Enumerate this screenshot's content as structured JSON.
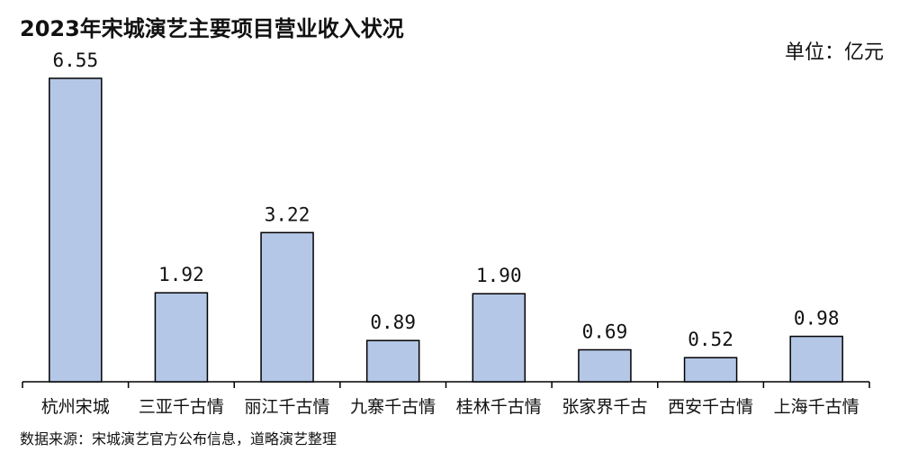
{
  "title": "2023年宋城演艺主要项目营业收入状况",
  "unit_label": "单位：亿元",
  "source": "数据来源：宋城演艺官方公布信息，道略演艺整理",
  "chart_data": {
    "type": "bar",
    "title": "2023年宋城演艺主要项目营业收入状况",
    "categories": [
      "杭州宋城",
      "三亚千古情",
      "丽江千古情",
      "九寨千古情",
      "桂林千古情",
      "张家界千古",
      "西安千古情",
      "上海千古情"
    ],
    "values": [
      6.55,
      1.92,
      3.22,
      0.89,
      1.9,
      0.69,
      0.52,
      0.98
    ],
    "value_labels": [
      "6.55",
      "1.92",
      "3.22",
      "0.89",
      "1.90",
      "0.69",
      "0.52",
      "0.98"
    ],
    "ylim": [
      0,
      6.55
    ],
    "bar_color": "#b4c7e7",
    "grid": false
  }
}
